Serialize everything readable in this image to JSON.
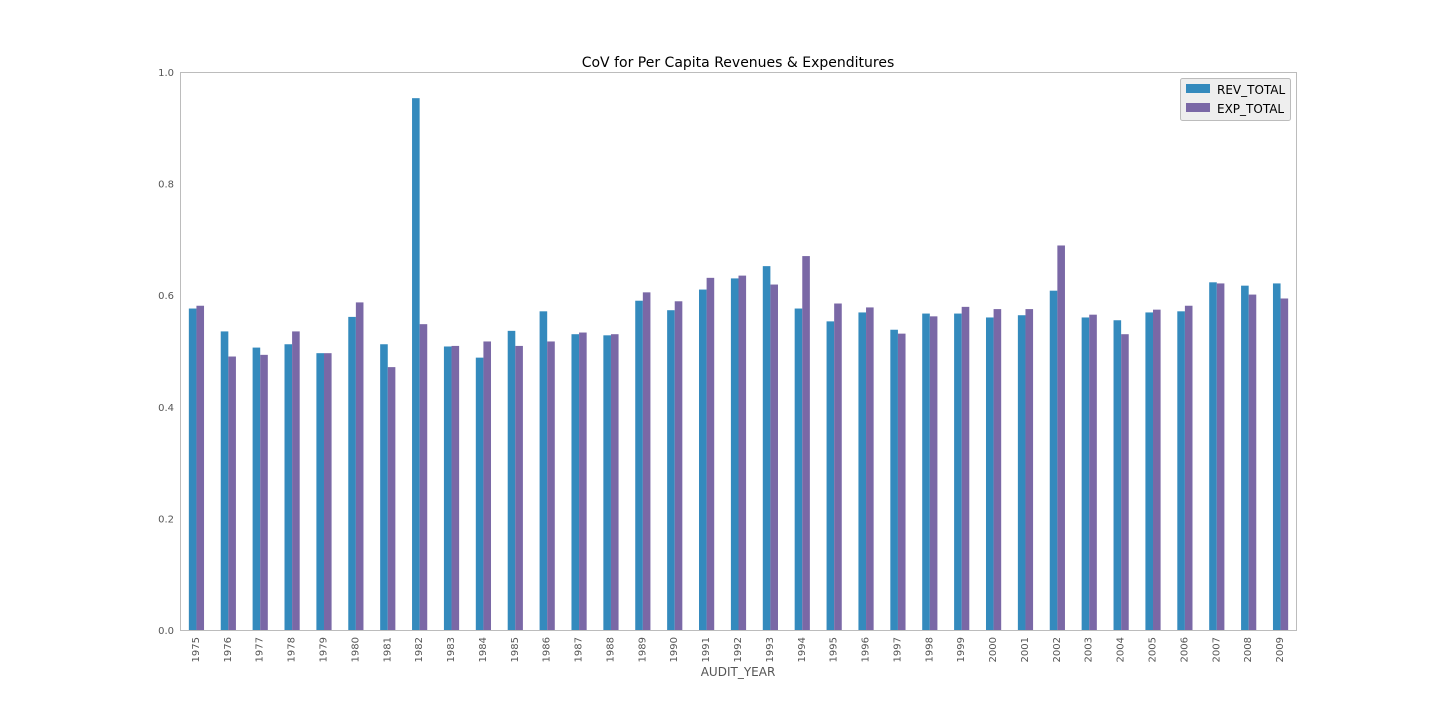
{
  "chart_data": {
    "type": "bar",
    "title": "CoV for Per Capita Revenues & Expenditures",
    "xlabel": "AUDIT_YEAR",
    "ylabel": "",
    "ylim": [
      0,
      1.0
    ],
    "yticks": [
      "0.0",
      "0.2",
      "0.4",
      "0.6",
      "0.8",
      "1.0"
    ],
    "grid": false,
    "legend_position": "top-right",
    "categories": [
      "1975",
      "1976",
      "1977",
      "1978",
      "1979",
      "1980",
      "1981",
      "1982",
      "1983",
      "1984",
      "1985",
      "1986",
      "1987",
      "1988",
      "1989",
      "1990",
      "1991",
      "1992",
      "1993",
      "1994",
      "1995",
      "1996",
      "1997",
      "1998",
      "1999",
      "2000",
      "2001",
      "2002",
      "2003",
      "2004",
      "2005",
      "2006",
      "2007",
      "2008",
      "2009"
    ],
    "series": [
      {
        "name": "REV_TOTAL",
        "color": "#348ABD",
        "values": [
          0.577,
          0.536,
          0.507,
          0.513,
          0.497,
          0.562,
          0.513,
          0.954,
          0.509,
          0.489,
          0.537,
          0.572,
          0.531,
          0.529,
          0.591,
          0.574,
          0.611,
          0.631,
          0.653,
          0.577,
          0.554,
          0.57,
          0.539,
          0.568,
          0.568,
          0.561,
          0.565,
          0.609,
          0.561,
          0.556,
          0.57,
          0.572,
          0.624,
          0.618,
          0.622
        ]
      },
      {
        "name": "EXP_TOTAL",
        "color": "#7A68A6",
        "values": [
          0.582,
          0.491,
          0.494,
          0.536,
          0.497,
          0.588,
          0.472,
          0.549,
          0.51,
          0.518,
          0.51,
          0.518,
          0.534,
          0.531,
          0.606,
          0.59,
          0.632,
          0.636,
          0.62,
          0.671,
          0.586,
          0.579,
          0.532,
          0.563,
          0.58,
          0.576,
          0.576,
          0.69,
          0.566,
          0.531,
          0.575,
          0.582,
          0.622,
          0.602,
          0.595
        ]
      }
    ]
  }
}
